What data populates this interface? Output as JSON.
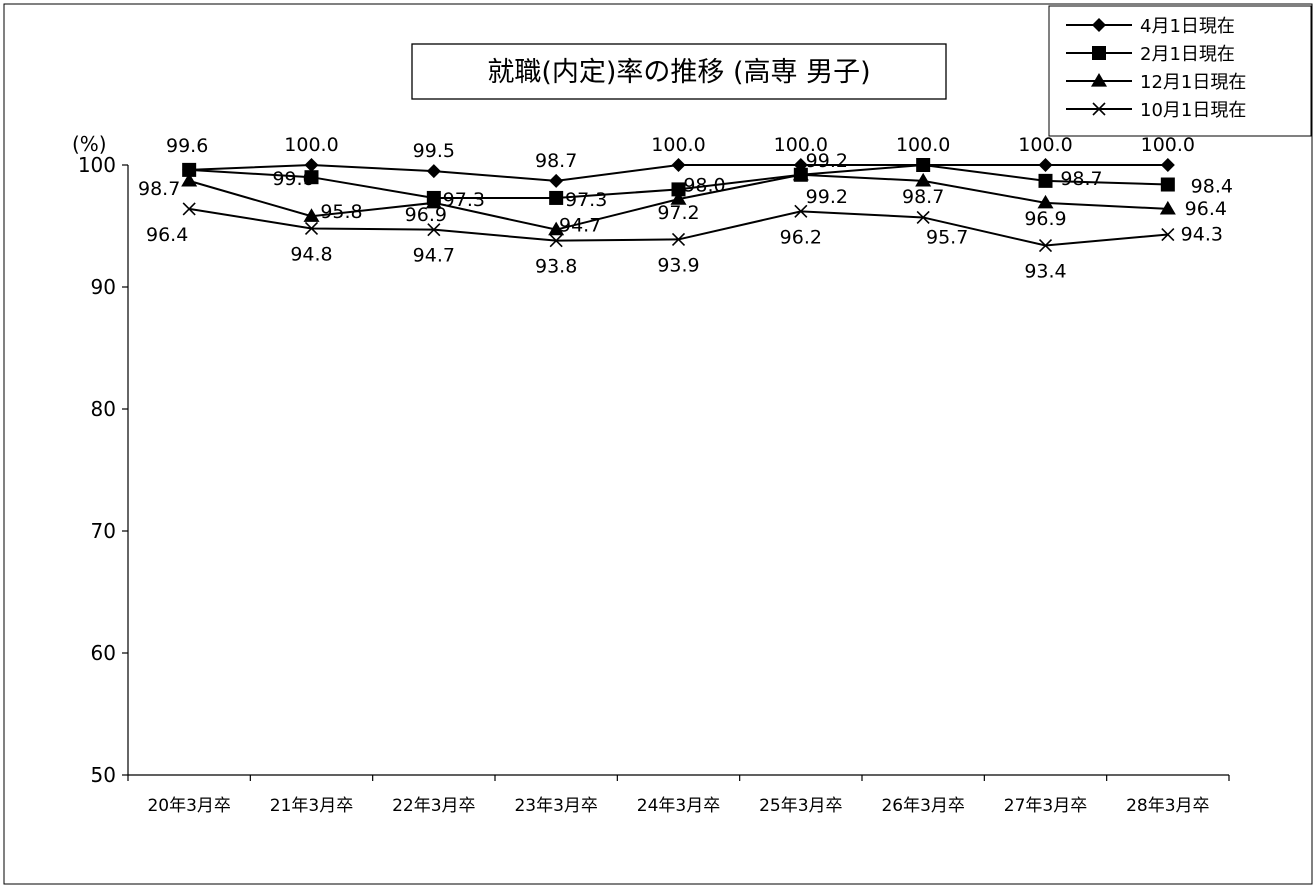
{
  "chart_data": {
    "type": "line",
    "title": "就職(内定)率の推移 (高専 男子)",
    "ylabel": "(%)",
    "xlabel": "",
    "ylim": [
      50,
      100
    ],
    "y_ticks": [
      "50",
      "60",
      "70",
      "80",
      "90",
      "100"
    ],
    "grid": false,
    "legend_position": "top-right",
    "categories": [
      "20年3月卒",
      "21年3月卒",
      "22年3月卒",
      "23年3月卒",
      "24年3月卒",
      "25年3月卒",
      "26年3月卒",
      "27年3月卒",
      "28年3月卒"
    ],
    "series": [
      {
        "name": "4月1日現在",
        "marker": "diamond",
        "color": "#000000",
        "values": [
          99.6,
          100.0,
          99.5,
          98.7,
          100.0,
          100.0,
          100.0,
          100.0,
          100.0
        ],
        "labels": [
          "99.6",
          "100.0",
          "99.5",
          "98.7",
          "100.0",
          "100.0",
          "100.0",
          "100.0",
          "100.0"
        ]
      },
      {
        "name": "2月1日現在",
        "marker": "square",
        "color": "#000000",
        "values": [
          99.6,
          99.0,
          97.3,
          97.3,
          98.0,
          99.2,
          100.0,
          98.7,
          98.4
        ],
        "labels": [
          "",
          "99.0",
          "97.3",
          "97.3",
          "98.0",
          "99.2",
          "",
          "98.7",
          "98.4"
        ]
      },
      {
        "name": "12月1日現在",
        "marker": "triangle",
        "color": "#000000",
        "values": [
          98.7,
          95.8,
          96.9,
          94.7,
          97.2,
          99.2,
          98.7,
          96.9,
          96.4
        ],
        "labels": [
          "98.7",
          "95.8",
          "96.9",
          "94.7",
          "97.2",
          "99.2",
          "98.7",
          "96.9",
          "96.4"
        ]
      },
      {
        "name": "10月1日現在",
        "marker": "x",
        "color": "#000000",
        "values": [
          96.4,
          94.8,
          94.7,
          93.8,
          93.9,
          96.2,
          95.7,
          93.4,
          94.3
        ],
        "labels": [
          "96.4",
          "94.8",
          "94.7",
          "93.8",
          "93.9",
          "96.2",
          "95.7",
          "93.4",
          "94.3"
        ]
      }
    ]
  }
}
